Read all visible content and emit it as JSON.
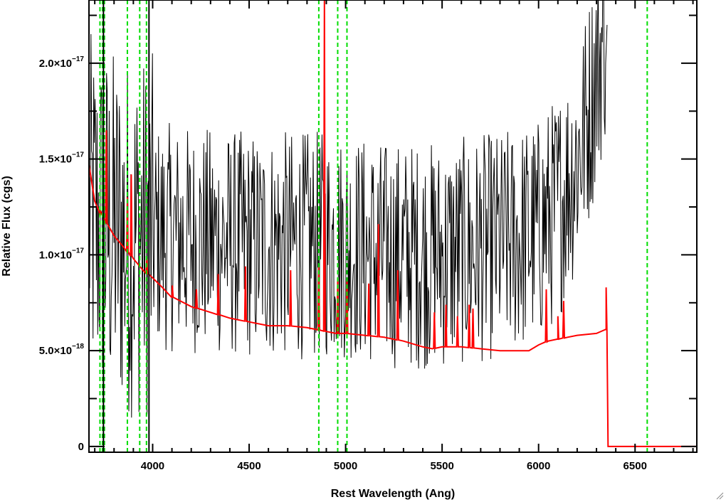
{
  "chart_data": {
    "type": "line",
    "title": "",
    "xlabel": "Rest Wavelength (Ang)",
    "ylabel": "Relative Flux (cgs)",
    "xlim": [
      3670,
      6820
    ],
    "ylim": [
      -3e-19,
      2.33e-17
    ],
    "x_ticks": [
      {
        "value": 4000,
        "label": "4000"
      },
      {
        "value": 4500,
        "label": "4500"
      },
      {
        "value": 5000,
        "label": "5000"
      },
      {
        "value": 5500,
        "label": "5500"
      },
      {
        "value": 6000,
        "label": "6000"
      },
      {
        "value": 6500,
        "label": "6500"
      }
    ],
    "y_ticks": [
      {
        "value": 0,
        "mantissa": "0",
        "exponent": ""
      },
      {
        "value": 5e-18,
        "mantissa": "5.0×10",
        "exponent": "−18"
      },
      {
        "value": 1e-17,
        "mantissa": "1.0×10",
        "exponent": "−17"
      },
      {
        "value": 1.5e-17,
        "mantissa": "1.5×10",
        "exponent": "−17"
      },
      {
        "value": 2e-17,
        "mantissa": "2.0×10",
        "exponent": "−17"
      }
    ],
    "x_minor_step": 100,
    "y_minor_step": 2.5e-18,
    "grid": false,
    "legend": "none",
    "colors": {
      "spectrum": "#000000",
      "model": "#ff0000",
      "lines": "#00dd00"
    },
    "series": [
      {
        "role": "spectrum",
        "note_style": "noisy observed spectrum, approximate envelope (noise sampled)",
        "color": "#000000",
        "x": [
          3680,
          3750,
          3850,
          4000,
          4200,
          4500,
          4800,
          5000,
          5200,
          5500,
          5800,
          6000,
          6100,
          6200,
          6250,
          6300,
          6350
        ],
        "y": [
          1.2e-17,
          1.15e-17,
          1.1e-17,
          1.1e-17,
          1.08e-17,
          1.05e-17,
          1.05e-17,
          1.05e-17,
          1e-17,
          1e-17,
          1.05e-17,
          1.12e-17,
          1.25e-17,
          1.5e-17,
          1.7e-17,
          1.95e-17,
          2.2e-17
        ],
        "scatter_amplitude": 6e-18,
        "sample_step": 3.5
      },
      {
        "role": "model",
        "color": "#ff0000",
        "x": [
          3670,
          3700,
          3750,
          3800,
          3850,
          3900,
          3950,
          4000,
          4050,
          4100,
          4200,
          4300,
          4400,
          4500,
          4600,
          4700,
          4800,
          4850,
          4900,
          4950,
          5000,
          5100,
          5200,
          5300,
          5400,
          5450,
          5500,
          5600,
          5700,
          5800,
          5900,
          5950,
          6000,
          6050,
          6100,
          6150,
          6200,
          6300,
          6350,
          6360,
          6365,
          6820
        ],
        "y": [
          1.47e-17,
          1.28e-17,
          1.18e-17,
          1.1e-17,
          1.04e-17,
          9.8e-18,
          9.2e-18,
          8.8e-18,
          8.3e-18,
          7.8e-18,
          7.3e-18,
          7e-18,
          6.7e-18,
          6.5e-18,
          6.3e-18,
          6.3e-18,
          6.2e-18,
          6.1e-18,
          6e-18,
          5.9e-18,
          5.9e-18,
          5.8e-18,
          5.7e-18,
          5.5e-18,
          5.2e-18,
          5.1e-18,
          5.2e-18,
          5.2e-18,
          5.1e-18,
          5e-18,
          5e-18,
          5e-18,
          5.3e-18,
          5.5e-18,
          5.6e-18,
          5.7e-18,
          5.8e-18,
          5.9e-18,
          6.1e-18,
          0,
          0,
          0
        ],
        "spikes": [
          {
            "x": 3727,
            "y": 1.2e-17
          },
          {
            "x": 3760,
            "y": 1.65e-17
          },
          {
            "x": 3869,
            "y": 1.3e-17
          },
          {
            "x": 3889,
            "y": 1.42e-17
          },
          {
            "x": 3970,
            "y": 9.8e-18
          },
          {
            "x": 4102,
            "y": 8.4e-18
          },
          {
            "x": 4227,
            "y": 8.2e-18
          },
          {
            "x": 4340,
            "y": 9e-18
          },
          {
            "x": 4481,
            "y": 9.4e-18
          },
          {
            "x": 4715,
            "y": 9.2e-18
          },
          {
            "x": 4861,
            "y": 9.4e-18
          },
          {
            "x": 4890,
            "y": 2.33e-17
          },
          {
            "x": 4959,
            "y": 8.8e-18
          },
          {
            "x": 5007,
            "y": 8.8e-18
          },
          {
            "x": 5120,
            "y": 8.5e-18
          },
          {
            "x": 5170,
            "y": 1.16e-17
          },
          {
            "x": 5270,
            "y": 9.2e-18
          },
          {
            "x": 5460,
            "y": 7e-18
          },
          {
            "x": 5520,
            "y": 7.4e-18
          },
          {
            "x": 5580,
            "y": 6.8e-18
          },
          {
            "x": 5640,
            "y": 7.4e-18
          },
          {
            "x": 5660,
            "y": 7.2e-18
          },
          {
            "x": 6040,
            "y": 8.2e-18
          },
          {
            "x": 6100,
            "y": 6.8e-18
          },
          {
            "x": 6130,
            "y": 7.6e-18
          },
          {
            "x": 6350,
            "y": 8.3e-18
          }
        ]
      }
    ],
    "reference_lines": {
      "color": "#00dd00",
      "style": "dashed",
      "x": [
        3727,
        3740,
        3750,
        3869,
        3933,
        3968,
        4861,
        4959,
        5007,
        6563
      ]
    },
    "annotations": [
      {
        "type": "solid-black-vertical",
        "x": 3745
      },
      {
        "type": "solid-black-vertical",
        "x": 3981
      }
    ]
  }
}
